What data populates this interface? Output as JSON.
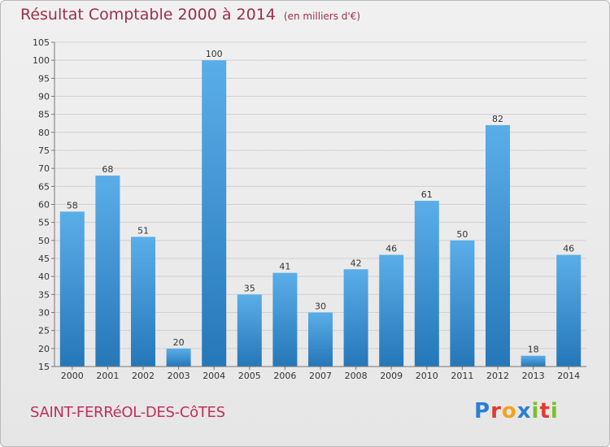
{
  "header": {
    "title": "Résultat Comptable 2000 à 2014",
    "subtitle": "(en milliers d'€)"
  },
  "footer": {
    "town": "SAINT-FERRéOL-DES-CôTES",
    "brand": {
      "text": "Proxiti",
      "letters": [
        {
          "char": "P",
          "color": "#2b7fd4"
        },
        {
          "char": "r",
          "color": "#e23b2e"
        },
        {
          "char": "o",
          "color": "#f2a31b"
        },
        {
          "char": "x",
          "color": "#2b7fd4"
        },
        {
          "char": "i",
          "color": "#7bbf2a"
        },
        {
          "char": "t",
          "color": "#e23b2e"
        },
        {
          "char": "i",
          "color": "#7bbf2a"
        }
      ]
    }
  },
  "colors": {
    "bar_light": "#5aaee8",
    "bar_dark": "#2577b8",
    "grid": "#d0d0d0",
    "title": "#9c2f4a",
    "town": "#c0305a"
  },
  "chart_data": {
    "type": "bar",
    "categories": [
      "2000",
      "2001",
      "2002",
      "2003",
      "2004",
      "2005",
      "2006",
      "2007",
      "2008",
      "2009",
      "2010",
      "2011",
      "2012",
      "2013",
      "2014"
    ],
    "values": [
      58,
      68,
      51,
      20,
      100,
      35,
      41,
      30,
      42,
      46,
      61,
      50,
      82,
      18,
      46
    ],
    "ylim": [
      15,
      105
    ],
    "yticks": [
      15,
      20,
      25,
      30,
      35,
      40,
      45,
      50,
      55,
      60,
      65,
      70,
      75,
      80,
      85,
      90,
      95,
      100,
      105
    ],
    "grid": true,
    "data_labels": true
  }
}
